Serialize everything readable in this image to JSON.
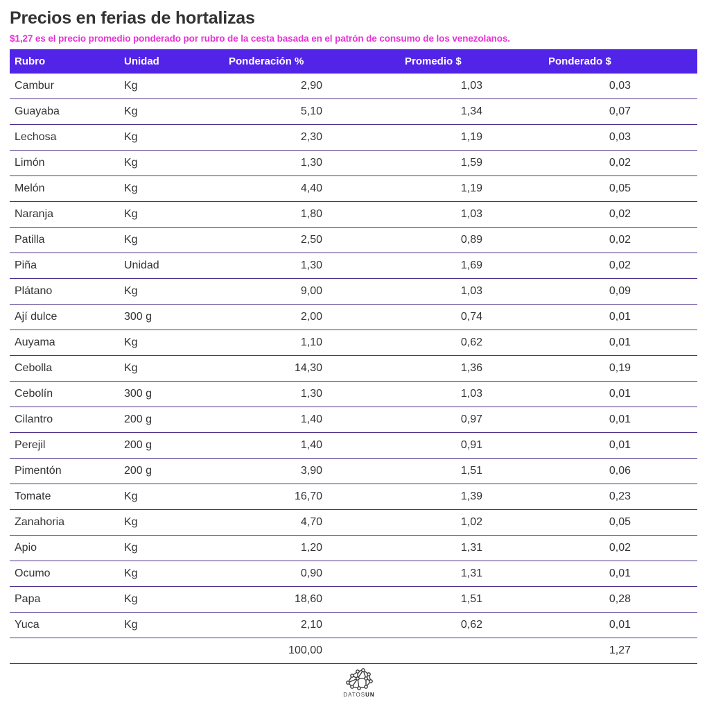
{
  "header": {
    "title": "Precios en ferias de hortalizas",
    "subtitle": "$1,27 es el precio promedio ponderado por rubro de la cesta basada en el patrón de consumo de los venezolanos.",
    "subtitle_color": "#e832d6"
  },
  "table": {
    "header_color": "#5224e8",
    "row_border_color": "#4b2e8a",
    "columns": [
      "Rubro",
      "Unidad",
      "Ponderación %",
      "Promedio $",
      "Ponderado $"
    ],
    "rows": [
      {
        "rubro": "Cambur",
        "unidad": "Kg",
        "ponderacion": "2,90",
        "promedio": "1,03",
        "ponderado": "0,03"
      },
      {
        "rubro": "Guayaba",
        "unidad": "Kg",
        "ponderacion": "5,10",
        "promedio": "1,34",
        "ponderado": "0,07"
      },
      {
        "rubro": "Lechosa",
        "unidad": "Kg",
        "ponderacion": "2,30",
        "promedio": "1,19",
        "ponderado": "0,03"
      },
      {
        "rubro": "Limón",
        "unidad": "Kg",
        "ponderacion": "1,30",
        "promedio": "1,59",
        "ponderado": "0,02"
      },
      {
        "rubro": "Melón",
        "unidad": "Kg",
        "ponderacion": "4,40",
        "promedio": "1,19",
        "ponderado": "0,05"
      },
      {
        "rubro": "Naranja",
        "unidad": "Kg",
        "ponderacion": "1,80",
        "promedio": "1,03",
        "ponderado": "0,02"
      },
      {
        "rubro": "Patilla",
        "unidad": "Kg",
        "ponderacion": "2,50",
        "promedio": "0,89",
        "ponderado": "0,02"
      },
      {
        "rubro": "Piña",
        "unidad": "Unidad",
        "ponderacion": "1,30",
        "promedio": "1,69",
        "ponderado": "0,02"
      },
      {
        "rubro": "Plátano",
        "unidad": "Kg",
        "ponderacion": "9,00",
        "promedio": "1,03",
        "ponderado": "0,09"
      },
      {
        "rubro": "Ají dulce",
        "unidad": "300 g",
        "ponderacion": "2,00",
        "promedio": "0,74",
        "ponderado": "0,01"
      },
      {
        "rubro": "Auyama",
        "unidad": "Kg",
        "ponderacion": "1,10",
        "promedio": "0,62",
        "ponderado": "0,01"
      },
      {
        "rubro": "Cebolla",
        "unidad": "Kg",
        "ponderacion": "14,30",
        "promedio": "1,36",
        "ponderado": "0,19"
      },
      {
        "rubro": "Cebolín",
        "unidad": "300 g",
        "ponderacion": "1,30",
        "promedio": "1,03",
        "ponderado": "0,01"
      },
      {
        "rubro": "Cilantro",
        "unidad": "200 g",
        "ponderacion": "1,40",
        "promedio": "0,97",
        "ponderado": "0,01"
      },
      {
        "rubro": "Perejil",
        "unidad": "200 g",
        "ponderacion": "1,40",
        "promedio": "0,91",
        "ponderado": "0,01"
      },
      {
        "rubro": "Pimentón",
        "unidad": "200 g",
        "ponderacion": "3,90",
        "promedio": "1,51",
        "ponderado": "0,06"
      },
      {
        "rubro": "Tomate",
        "unidad": "Kg",
        "ponderacion": "16,70",
        "promedio": "1,39",
        "ponderado": "0,23"
      },
      {
        "rubro": "Zanahoria",
        "unidad": "Kg",
        "ponderacion": "4,70",
        "promedio": "1,02",
        "ponderado": "0,05"
      },
      {
        "rubro": "Apio",
        "unidad": "Kg",
        "ponderacion": "1,20",
        "promedio": "1,31",
        "ponderado": "0,02"
      },
      {
        "rubro": "Ocumo",
        "unidad": "Kg",
        "ponderacion": "0,90",
        "promedio": "1,31",
        "ponderado": "0,01"
      },
      {
        "rubro": "Papa",
        "unidad": "Kg",
        "ponderacion": "18,60",
        "promedio": "1,51",
        "ponderado": "0,28"
      },
      {
        "rubro": "Yuca",
        "unidad": "Kg",
        "ponderacion": "2,10",
        "promedio": "0,62",
        "ponderado": "0,01"
      }
    ],
    "totals": {
      "rubro": "",
      "unidad": "",
      "ponderacion": "100,00",
      "promedio": "",
      "ponderado": "1,27"
    }
  },
  "footer": {
    "logo_icon": "network-brain-icon",
    "logo_text_light": "DATOS",
    "logo_text_bold": "UN"
  }
}
